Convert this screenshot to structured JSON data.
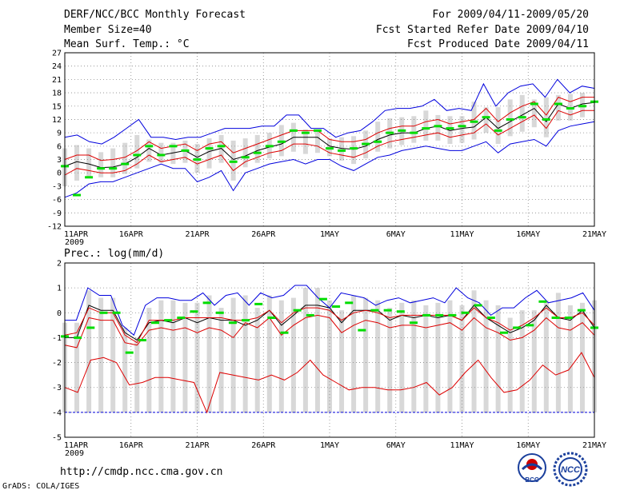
{
  "header": {
    "title": "DERF/NCC/BCC Monthly Forecast",
    "member_size": "Member Size=40",
    "variable": "Mean Surf. Temp.: °C",
    "period": "For 2009/04/11-2009/05/20",
    "started": "Fcst Started Refer Date 2009/04/10",
    "produced": "Fcst Produced Date 2009/04/11"
  },
  "footer": {
    "url": "http://cmdp.ncc.cma.gov.cn",
    "credit": "GrADS: COLA/IGES",
    "logo_left_text": "BCC",
    "logo_right_text": "NCC"
  },
  "colors": {
    "box": "#d8d8d8",
    "median": "#00dd00",
    "mean": "#000000",
    "spread": "#dd0000",
    "envelope": "#0000dd",
    "grid": "#888888"
  },
  "chart_data": [
    {
      "type": "line",
      "title": "Mean Surf. Temp.: °C",
      "xlabel": "",
      "ylabel": "",
      "ylim": [
        -12,
        27
      ],
      "yticks": [
        -12,
        -9,
        -6,
        -3,
        0,
        3,
        6,
        9,
        12,
        15,
        18,
        21,
        24,
        27
      ],
      "xlim": [
        0,
        40
      ],
      "xticks": [
        1,
        6,
        11,
        16,
        21,
        26,
        31,
        36,
        41
      ],
      "xtick_labels": [
        "11APR",
        "16APR",
        "21APR",
        "26APR",
        "1MAY",
        "6MAY",
        "11MAY",
        "16MAY",
        "21MAY"
      ],
      "year_label": "2009",
      "series": [
        {
          "name": "mean",
          "values": [
            1.5,
            2.5,
            2,
            1.2,
            1.3,
            2,
            3.5,
            5.5,
            4,
            4.5,
            5,
            3.5,
            4.8,
            5.5,
            3,
            3.8,
            5,
            5.8,
            6.5,
            8,
            8,
            8,
            6,
            5.5,
            5.3,
            6,
            7.5,
            8.5,
            9,
            9,
            10,
            10.5,
            9.5,
            10,
            10.3,
            12.5,
            10,
            11.5,
            13,
            14.5,
            11.5,
            15.5,
            14.5,
            15.5,
            15.8
          ]
        },
        {
          "name": "upper",
          "values": [
            3,
            4,
            4,
            2.8,
            3,
            3.5,
            5,
            7,
            5.5,
            6,
            6.5,
            5,
            6.5,
            7,
            4.5,
            5.5,
            6.5,
            7.5,
            8.5,
            9.5,
            9.5,
            9.5,
            7.5,
            7,
            7,
            7.5,
            9,
            10,
            10.5,
            10.5,
            11.5,
            12,
            11,
            11.5,
            12,
            14.5,
            11.5,
            13.5,
            15,
            16,
            13,
            17,
            16,
            17,
            17
          ]
        },
        {
          "name": "lower",
          "values": [
            -0.5,
            1,
            0.5,
            0,
            0,
            0.5,
            2,
            4,
            2.5,
            3,
            3.5,
            2,
            3,
            4,
            0.5,
            2.5,
            3.5,
            4.5,
            5,
            6.5,
            6.5,
            6,
            4.5,
            4,
            3.5,
            4.5,
            6,
            7,
            7.5,
            8,
            8.5,
            9,
            8,
            8.5,
            9,
            11,
            8.5,
            10,
            11.5,
            13,
            10,
            14,
            13,
            14,
            14
          ]
        },
        {
          "name": "max",
          "values": [
            8,
            8.5,
            7,
            6.5,
            8,
            10,
            12,
            8,
            8,
            7.5,
            8,
            8,
            9,
            10,
            10,
            10,
            10.5,
            10.5,
            13,
            13,
            10,
            10,
            8,
            9,
            9.5,
            11.5,
            14,
            14.5,
            14.5,
            15,
            16.5,
            14,
            14.5,
            14,
            20,
            15,
            18,
            19.5,
            20,
            17,
            21,
            18,
            19.5,
            19
          ]
        },
        {
          "name": "min",
          "values": [
            -5.5,
            -4.5,
            -2.5,
            -2,
            -2,
            -1,
            0,
            1,
            2,
            1,
            1,
            -2,
            -1,
            0.5,
            -4,
            0,
            1,
            2,
            2.5,
            3,
            2,
            3,
            3,
            1.5,
            0.5,
            2,
            3.5,
            4,
            5,
            5.5,
            6,
            5.5,
            5,
            5,
            6,
            7,
            4.5,
            6.5,
            7,
            7.5,
            6,
            9.5,
            10.5,
            11,
            11.5
          ]
        },
        {
          "name": "median",
          "values": [
            1.5,
            -5,
            -1,
            1,
            1,
            2,
            4,
            6,
            4,
            6,
            5,
            3,
            5.5,
            6,
            2.5,
            3.5,
            4.5,
            6,
            7,
            9.5,
            9,
            9.5,
            5.5,
            5,
            5.5,
            6.5,
            7,
            9,
            9.5,
            9,
            10,
            10.5,
            10,
            10.5,
            11.5,
            12.5,
            9.5,
            12,
            12.5,
            15.5,
            12,
            15.5,
            14.5,
            15,
            16
          ]
        }
      ]
    },
    {
      "type": "line",
      "title": "Prec.: log(mm/d)",
      "xlabel": "",
      "ylabel": "",
      "ylim": [
        -5,
        2
      ],
      "yticks": [
        -5,
        -4,
        -3,
        -2,
        -1,
        0,
        1,
        2
      ],
      "xlim": [
        0,
        40
      ],
      "xticks": [
        1,
        6,
        11,
        16,
        21,
        26,
        31,
        36,
        41
      ],
      "xtick_labels": [
        "11APR",
        "16APR",
        "21APR",
        "26APR",
        "1MAY",
        "6MAY",
        "11MAY",
        "16MAY",
        "21MAY"
      ],
      "year_label": "2009",
      "floor_value": -4,
      "series": [
        {
          "name": "mean",
          "values": [
            -1,
            -1,
            0.3,
            0.1,
            0.1,
            -0.8,
            -1.1,
            -0.4,
            -0.3,
            -0.4,
            -0.2,
            -0.4,
            -0.2,
            -0.3,
            -0.3,
            -0.5,
            -0.3,
            0.1,
            -0.5,
            -0.1,
            0.3,
            0.3,
            0.2,
            -0.4,
            0.1,
            0.1,
            0.1,
            -0.3,
            -0.1,
            -0.2,
            -0.1,
            -0.2,
            -0.1,
            -0.3,
            0.3,
            -0.2,
            -0.5,
            -0.8,
            -0.6,
            -0.3,
            0.3,
            -0.2,
            -0.3,
            0.1,
            -0.6
          ]
        },
        {
          "name": "upper",
          "values": [
            -0.9,
            -0.8,
            0.2,
            0,
            0,
            -0.9,
            -1.2,
            -0.3,
            -0.3,
            -0.3,
            -0.2,
            -0.2,
            -0.2,
            -0.2,
            -0.3,
            -0.3,
            -0.2,
            0.1,
            -0.4,
            0,
            0.2,
            0.2,
            0.1,
            -0.3,
            0,
            0.1,
            0,
            -0.2,
            -0.1,
            -0.1,
            -0.1,
            -0.1,
            -0.1,
            -0.3,
            0.2,
            -0.2,
            -0.4,
            -0.7,
            -0.5,
            -0.2,
            0.2,
            -0.2,
            -0.2,
            0,
            -0.5
          ]
        },
        {
          "name": "lower",
          "values": [
            -1.3,
            -1.4,
            -0.2,
            -0.3,
            -0.3,
            -1.2,
            -1.3,
            -0.7,
            -0.6,
            -0.7,
            -0.6,
            -0.8,
            -0.6,
            -0.7,
            -1,
            -0.4,
            -0.6,
            -0.2,
            -0.9,
            -0.5,
            -0.2,
            -0.1,
            -0.2,
            -0.8,
            -0.5,
            -0.3,
            -0.4,
            -0.6,
            -0.5,
            -0.5,
            -0.6,
            -0.5,
            -0.4,
            -0.7,
            -0.2,
            -0.6,
            -0.8,
            -1.1,
            -1,
            -0.7,
            -0.2,
            -0.6,
            -0.7,
            -0.4,
            -0.9
          ]
        },
        {
          "name": "low_percentile",
          "values": [
            -3,
            -3.2,
            -1.9,
            -1.8,
            -2,
            -2.9,
            -2.8,
            -2.6,
            -2.6,
            -2.7,
            -2.8,
            -4,
            -2.4,
            -2.5,
            -2.6,
            -2.7,
            -2.5,
            -2.7,
            -2.4,
            -1.9,
            -2.5,
            -2.8,
            -3.1,
            -3,
            -3,
            -3.1,
            -3.1,
            -3,
            -2.8,
            -3.3,
            -3,
            -2.4,
            -1.9,
            -2.6,
            -3.2,
            -3.1,
            -2.7,
            -2.1,
            -2.5,
            -2.3,
            -1.6,
            -2.6
          ]
        },
        {
          "name": "max",
          "values": [
            -0.3,
            -0.3,
            1,
            0.7,
            0.7,
            -0.5,
            -0.9,
            0.3,
            0.6,
            0.6,
            0.5,
            0.5,
            0.8,
            0.3,
            0.7,
            0.8,
            0.3,
            0.8,
            0.6,
            0.7,
            1.1,
            1.1,
            0.6,
            0.2,
            0.8,
            0.7,
            0.6,
            0.3,
            0.5,
            0.6,
            0.4,
            0.5,
            0.6,
            0.4,
            1,
            0.6,
            0.4,
            -0.1,
            0.2,
            0.2,
            0.6,
            0.9,
            0.4,
            0.5,
            0.6,
            0.8,
            0.1
          ]
        },
        {
          "name": "median",
          "values": [
            -0.95,
            -1,
            -0.6,
            0,
            0,
            -1.6,
            -1.1,
            -0.4,
            -0.3,
            -0.2,
            0.05,
            0.4,
            0,
            -0.4,
            -0.3,
            0.35,
            -0.2,
            -0.8,
            0.1,
            -0.1,
            0.55,
            0.25,
            0.4,
            -0.7,
            0.1,
            0.1,
            0.05,
            -0.4,
            -0.1,
            -0.1,
            -0.1,
            0,
            0.3,
            -0.2,
            -0.8,
            -0.6,
            -0.5,
            0.45,
            -0.2,
            -0.2,
            0.1,
            -0.6
          ]
        }
      ]
    }
  ]
}
